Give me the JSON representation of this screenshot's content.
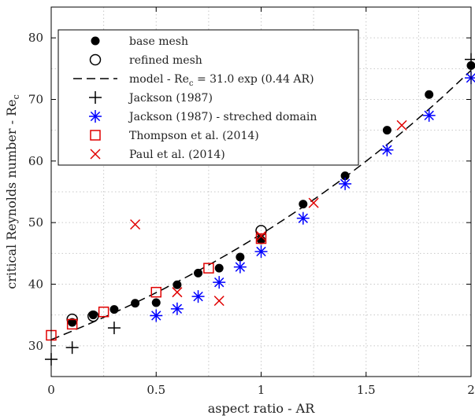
{
  "chart_data": {
    "type": "scatter",
    "xlabel": "aspect ratio - AR",
    "ylabel": "critical Reynolds number - Re",
    "ylabel_sub": "c",
    "xlim": [
      0,
      2
    ],
    "ylim": [
      25,
      85
    ],
    "xticks": [
      0,
      0.5,
      1,
      1.5,
      2
    ],
    "xtick_labels": [
      "0",
      "0.5",
      "1",
      "1.5",
      "2"
    ],
    "yticks": [
      30,
      40,
      50,
      60,
      70,
      80
    ],
    "ytick_labels": [
      "30",
      "40",
      "50",
      "60",
      "70",
      "80"
    ],
    "grid": "dotted",
    "legend_position": "top-left",
    "model": {
      "a": 31.0,
      "b": 0.44
    },
    "series": [
      {
        "name": "base mesh",
        "marker": "filled-circle",
        "color": "#000000",
        "points": [
          [
            0.1,
            33.8
          ],
          [
            0.2,
            35.0
          ],
          [
            0.3,
            35.9
          ],
          [
            0.4,
            36.9
          ],
          [
            0.5,
            37.0
          ],
          [
            0.6,
            39.9
          ],
          [
            0.7,
            41.8
          ],
          [
            0.8,
            42.6
          ],
          [
            0.9,
            44.4
          ],
          [
            1.0,
            47.2
          ],
          [
            1.2,
            53.0
          ],
          [
            1.4,
            57.6
          ],
          [
            1.6,
            65.0
          ],
          [
            1.8,
            70.8
          ],
          [
            2.0,
            75.5
          ]
        ]
      },
      {
        "name": "refined mesh",
        "marker": "open-circle",
        "color": "#000000",
        "points": [
          [
            0.1,
            34.3
          ],
          [
            0.2,
            34.8
          ],
          [
            1.0,
            48.7
          ]
        ]
      },
      {
        "name": "model - Re",
        "name_sub": "c",
        "name_rest": " = 31.0 exp (0.44 AR)",
        "marker": "dashed-line",
        "color": "#000000"
      },
      {
        "name": "Jackson (1987)",
        "marker": "plus",
        "color": "#000000",
        "points": [
          [
            0.0,
            27.8
          ],
          [
            0.1,
            29.7
          ],
          [
            0.3,
            32.9
          ],
          [
            2.0,
            76.5
          ]
        ]
      },
      {
        "name": "Jackson (1987) - streched domain",
        "marker": "asterisk",
        "color": "#0000ff",
        "points": [
          [
            0.5,
            34.9
          ],
          [
            0.6,
            36.0
          ],
          [
            0.7,
            38.0
          ],
          [
            0.8,
            40.3
          ],
          [
            0.9,
            42.8
          ],
          [
            1.0,
            45.3
          ],
          [
            1.2,
            50.7
          ],
          [
            1.4,
            56.3
          ],
          [
            1.6,
            61.8
          ],
          [
            1.8,
            67.4
          ],
          [
            2.0,
            73.5
          ]
        ]
      },
      {
        "name": "Thompson et al. (2014)",
        "marker": "open-square",
        "color": "#e00000",
        "points": [
          [
            0.0,
            31.7
          ],
          [
            0.1,
            33.5
          ],
          [
            0.25,
            35.5
          ],
          [
            0.5,
            38.7
          ],
          [
            0.75,
            42.6
          ],
          [
            1.0,
            47.4
          ]
        ]
      },
      {
        "name": "Paul et al. (2014)",
        "marker": "x",
        "color": "#e00000",
        "points": [
          [
            0.4,
            49.7
          ],
          [
            0.6,
            38.7
          ],
          [
            0.8,
            37.3
          ],
          [
            1.0,
            47.8
          ],
          [
            1.25,
            53.2
          ],
          [
            1.67,
            65.8
          ]
        ]
      }
    ]
  }
}
